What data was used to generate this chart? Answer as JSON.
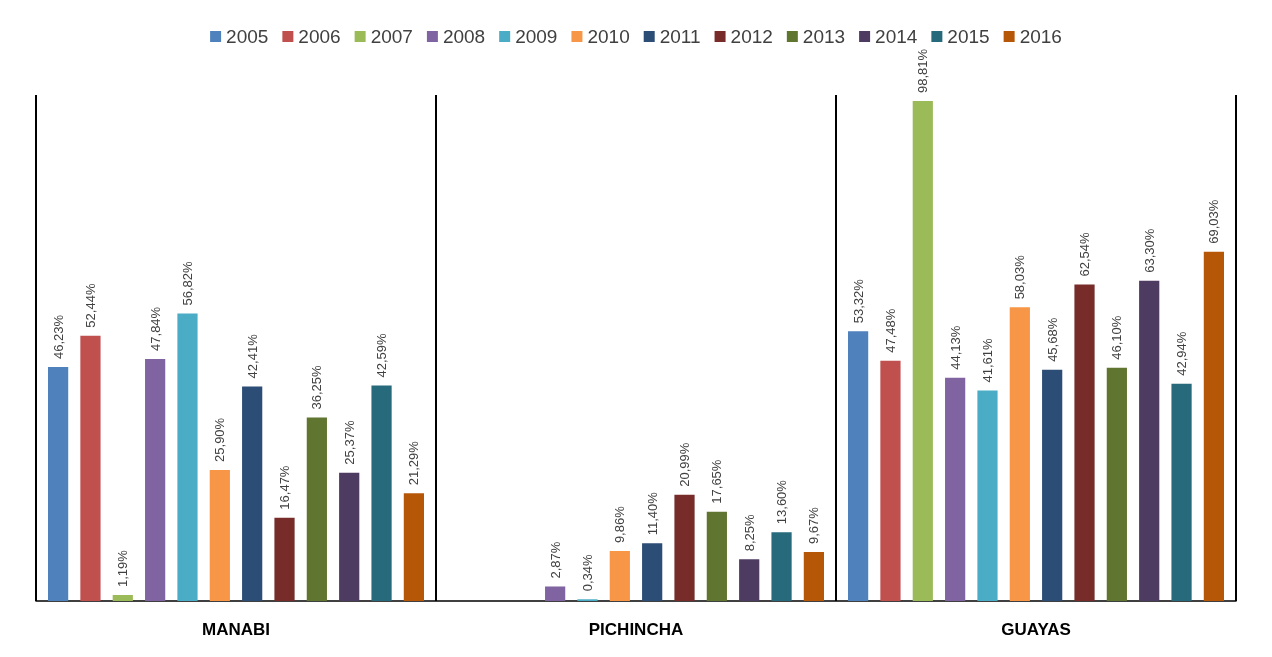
{
  "chart_data": {
    "type": "bar",
    "categories": [
      "MANABI",
      "PICHINCHA",
      "GUAYAS"
    ],
    "legend": "top",
    "grid": "x",
    "tick_labels": "x",
    "series": [
      {
        "name": "2005",
        "color": "#4f81bd",
        "values": [
          46.23,
          null,
          53.32
        ],
        "value_labels": [
          "46,23%",
          null,
          "53,32%"
        ]
      },
      {
        "name": "2006",
        "color": "#c0504d",
        "values": [
          52.44,
          null,
          47.48
        ],
        "value_labels": [
          "52,44%",
          null,
          "47,48%"
        ]
      },
      {
        "name": "2007",
        "color": "#9bbb59",
        "values": [
          1.19,
          null,
          98.81
        ],
        "value_labels": [
          "1,19%",
          null,
          "98,81%"
        ]
      },
      {
        "name": "2008",
        "color": "#8064a2",
        "values": [
          47.84,
          2.87,
          44.13
        ],
        "value_labels": [
          "47,84%",
          "2,87%",
          "44,13%"
        ]
      },
      {
        "name": "2009",
        "color": "#4bacc6",
        "values": [
          56.82,
          0.34,
          41.61
        ],
        "value_labels": [
          "56,82%",
          "0,34%",
          "41,61%"
        ]
      },
      {
        "name": "2010",
        "color": "#f79646",
        "values": [
          25.9,
          9.86,
          58.03
        ],
        "value_labels": [
          "25,90%",
          "9,86%",
          "58,03%"
        ]
      },
      {
        "name": "2011",
        "color": "#2c4d75",
        "values": [
          42.41,
          11.4,
          45.68
        ],
        "value_labels": [
          "42,41%",
          "11,40%",
          "45,68%"
        ]
      },
      {
        "name": "2012",
        "color": "#772c2a",
        "values": [
          16.47,
          20.99,
          62.54
        ],
        "value_labels": [
          "16,47%",
          "20,99%",
          "62,54%"
        ]
      },
      {
        "name": "2013",
        "color": "#5f7530",
        "values": [
          36.25,
          17.65,
          46.1
        ],
        "value_labels": [
          "36,25%",
          "17,65%",
          "46,10%"
        ]
      },
      {
        "name": "2014",
        "color": "#4d3b62",
        "values": [
          25.37,
          8.25,
          63.3
        ],
        "value_labels": [
          "25,37%",
          "8,25%",
          "63,30%"
        ]
      },
      {
        "name": "2015",
        "color": "#276a7c",
        "values": [
          42.59,
          13.6,
          42.94
        ],
        "value_labels": [
          "42,59%",
          "13,60%",
          "42,94%"
        ]
      },
      {
        "name": "2016",
        "color": "#b65708",
        "values": [
          21.29,
          9.67,
          69.03
        ],
        "value_labels": [
          "21,29%",
          "9,67%",
          "69,03%"
        ]
      }
    ]
  }
}
